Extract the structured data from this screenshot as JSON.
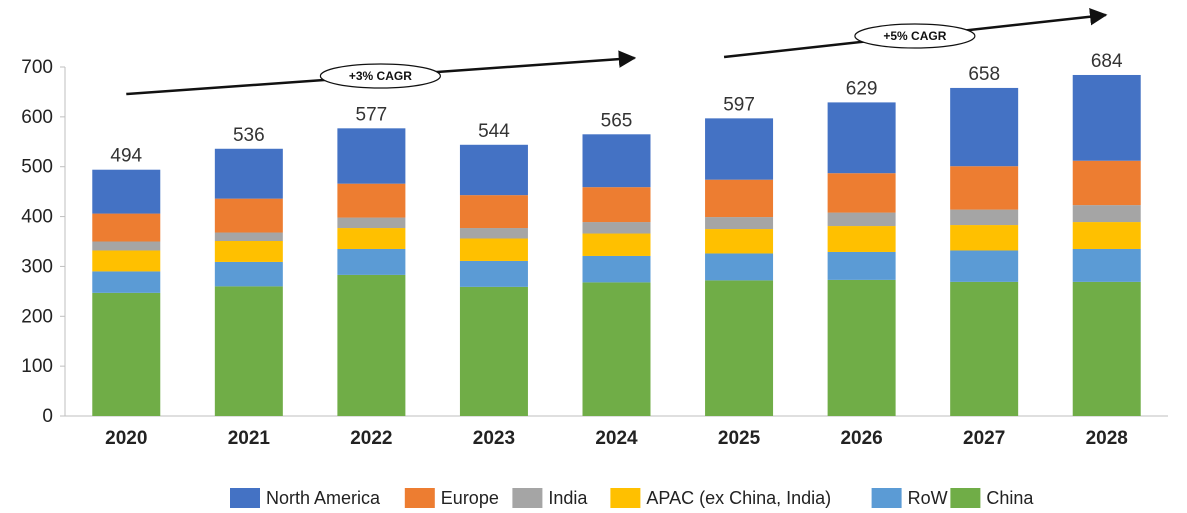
{
  "chart_data": {
    "type": "bar",
    "stacked": true,
    "categories": [
      "2020",
      "2021",
      "2022",
      "2023",
      "2024",
      "2025",
      "2026",
      "2027",
      "2028"
    ],
    "totals": [
      494,
      536,
      577,
      544,
      565,
      597,
      629,
      658,
      684
    ],
    "series": [
      {
        "name": "China",
        "color": "#70ad47",
        "values": [
          247,
          260,
          283,
          259,
          268,
          272,
          273,
          269,
          269
        ]
      },
      {
        "name": "RoW",
        "color": "#5b9bd5",
        "values": [
          43,
          49,
          52,
          52,
          53,
          54,
          56,
          63,
          66
        ]
      },
      {
        "name": "APAC (ex China, India)",
        "color": "#ffc000",
        "values": [
          42,
          42,
          42,
          45,
          45,
          49,
          52,
          51,
          54
        ]
      },
      {
        "name": "India",
        "color": "#a5a5a5",
        "values": [
          18,
          17,
          21,
          21,
          23,
          24,
          27,
          31,
          34
        ]
      },
      {
        "name": "Europe",
        "color": "#ed7d31",
        "values": [
          56,
          68,
          68,
          66,
          70,
          75,
          79,
          87,
          89
        ]
      },
      {
        "name": "North America",
        "color": "#4472c4",
        "values": [
          88,
          100,
          111,
          101,
          106,
          123,
          142,
          157,
          172
        ]
      }
    ],
    "legend_order": [
      "North America",
      "Europe",
      "India",
      "APAC (ex China, India)",
      "RoW",
      "China"
    ],
    "legend_position": "bottom",
    "ylim": [
      0,
      700
    ],
    "yticks": [
      0,
      100,
      200,
      300,
      400,
      500,
      600,
      700
    ],
    "grid": false,
    "annotations": [
      {
        "text": "+3% CAGR",
        "from": "2020",
        "to": "2024"
      },
      {
        "text": "+5% CAGR",
        "from": "2025",
        "to": "2028"
      }
    ]
  }
}
